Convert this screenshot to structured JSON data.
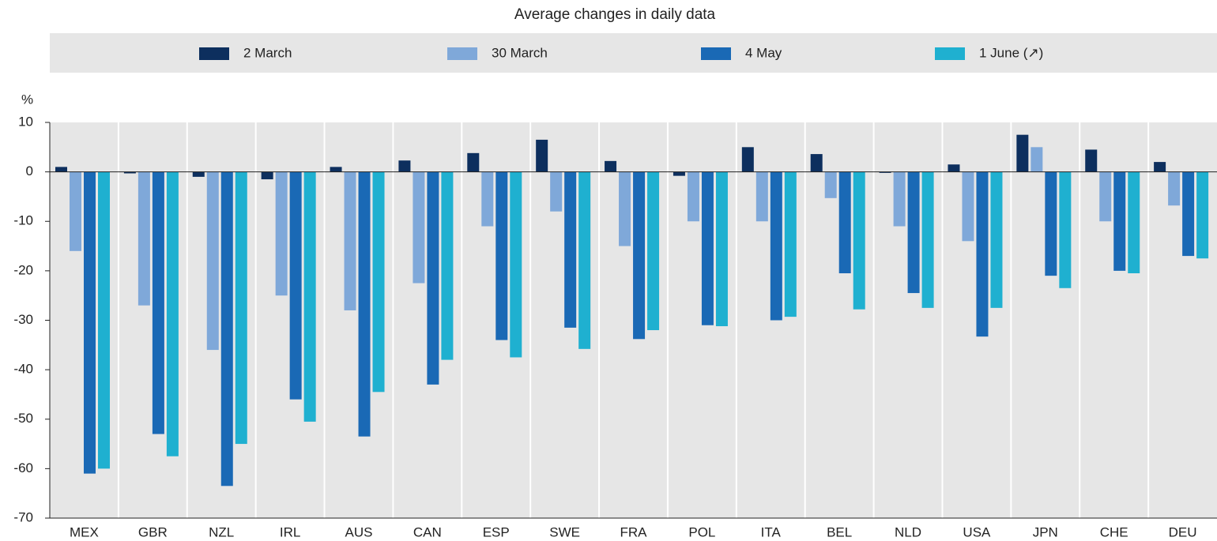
{
  "chart_data": {
    "type": "bar",
    "title": "Average changes in daily data",
    "y_label": "%",
    "categories": [
      "MEX",
      "GBR",
      "NZL",
      "IRL",
      "AUS",
      "CAN",
      "ESP",
      "SWE",
      "FRA",
      "POL",
      "ITA",
      "BEL",
      "NLD",
      "USA",
      "JPN",
      "CHE",
      "DEU"
    ],
    "series": [
      {
        "name": "2 March",
        "color": "#0d2f5e",
        "values": [
          1,
          -0.3,
          -1,
          -1.5,
          1,
          2.3,
          3.8,
          6.5,
          2.2,
          -0.8,
          5,
          3.6,
          -0.2,
          1.5,
          7.5,
          4.5,
          2
        ]
      },
      {
        "name": "30 March",
        "color": "#7fa8d9",
        "values": [
          -16,
          -27,
          -36,
          -25,
          -28,
          -22.5,
          -11,
          -8,
          -15,
          -10,
          -10,
          -5.3,
          -11,
          -14,
          5,
          -10,
          -6.8
        ]
      },
      {
        "name": "4 May",
        "color": "#1a69b5",
        "values": [
          -61,
          -53,
          -63.5,
          -46,
          -53.5,
          -43,
          -34,
          -31.5,
          -33.8,
          -31,
          -30,
          -20.5,
          -24.5,
          -33.3,
          -21,
          -20,
          -17
        ]
      },
      {
        "name": "1 June (↗)",
        "color": "#1fb0d0",
        "values": [
          -60,
          -57.5,
          -55,
          -50.5,
          -44.5,
          -38,
          -37.5,
          -35.8,
          -32,
          -31.2,
          -29.3,
          -27.8,
          -27.5,
          -27.5,
          -23.5,
          -20.5,
          -17.5
        ]
      }
    ],
    "ylim": [
      -70,
      10
    ],
    "yticks": [
      -70,
      -60,
      -50,
      -40,
      -30,
      -20,
      -10,
      0,
      10
    ]
  }
}
